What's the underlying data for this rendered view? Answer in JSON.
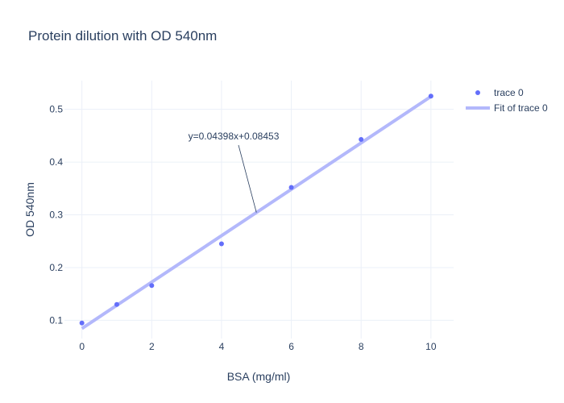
{
  "chart_data": {
    "type": "scatter",
    "title": "Protein dilution with OD 540nm",
    "xlabel": "BSA (mg/ml)",
    "ylabel": "OD 540nm",
    "xlim": [
      -0.5,
      10.65
    ],
    "ylim": [
      0.0655,
      0.5545
    ],
    "xticks": [
      0,
      2,
      4,
      6,
      8,
      10
    ],
    "yticks": [
      0.1,
      0.2,
      0.3,
      0.4,
      0.5
    ],
    "grid": true,
    "legend_position": "top-right",
    "series": [
      {
        "name": "trace 0",
        "mode": "markers",
        "color": "#636efa",
        "x": [
          0,
          1,
          2,
          4,
          6,
          8,
          10
        ],
        "y": [
          0.095,
          0.13,
          0.166,
          0.245,
          0.352,
          0.443,
          0.525
        ]
      },
      {
        "name": "Fit of trace 0",
        "mode": "line",
        "color": "#b3b8fb",
        "slope": 0.04398,
        "intercept": 0.08453,
        "x": [
          0,
          10
        ]
      }
    ],
    "annotations": [
      {
        "text": "y=0.04398x+0.08453",
        "arrow_to_x": 5
      }
    ]
  }
}
